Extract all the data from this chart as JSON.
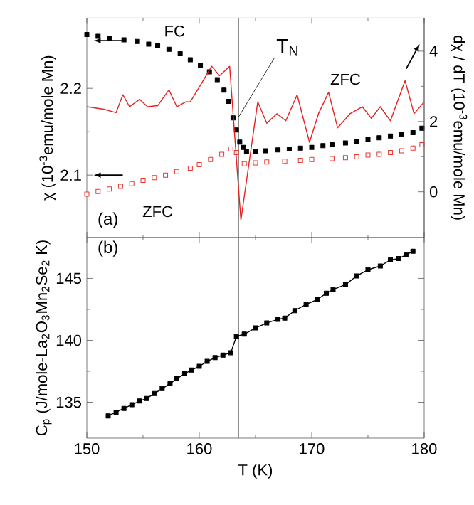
{
  "chart_data": [
    {
      "type": "scatter",
      "ylabel": "χ (10$^{-3}$emu/mole Mn)",
      "y2label": "dχ / dT (10$^{-3}$emu/mole Mn)",
      "xlim": [
        150,
        180
      ],
      "xticks": [
        150,
        160,
        170,
        180
      ],
      "ylim": [
        2.028,
        2.281
      ],
      "yticks": [
        2.1,
        2.2
      ],
      "y2lim": [
        -1.3,
        4.94
      ],
      "y2ticks": [
        0,
        2,
        4
      ],
      "tick_labels": "y",
      "marker": "square",
      "grid": false,
      "series": [
        {
          "name": "FC",
          "color": "#000000",
          "x": [
            150,
            151,
            152,
            153.3,
            154.5,
            155.5,
            156.3,
            157.3,
            158.3,
            159.2,
            160.1,
            160.9,
            161.6,
            162.2,
            162.6,
            163.0,
            163.3,
            163.6,
            163.9,
            164.2,
            165,
            165.9,
            167,
            168,
            169,
            170,
            171,
            171.8,
            173,
            174,
            175,
            176,
            177,
            178,
            179,
            179.8
          ],
          "values": [
            2.262,
            2.26,
            2.258,
            2.256,
            2.254,
            2.251,
            2.249,
            2.245,
            2.24,
            2.233,
            2.226,
            2.219,
            2.21,
            2.198,
            2.185,
            2.166,
            2.152,
            2.138,
            2.132,
            2.127,
            2.127,
            2.128,
            2.129,
            2.13,
            2.131,
            2.132,
            2.134,
            2.135,
            2.137,
            2.139,
            2.141,
            2.143,
            2.145,
            2.147,
            2.149,
            2.154
          ]
        },
        {
          "name": "ZFC",
          "color": "#e8372f",
          "x": [
            150,
            151,
            152,
            153,
            154,
            155,
            156,
            157,
            158,
            159.2,
            160,
            161,
            162,
            162.8,
            163.3,
            164,
            165,
            166,
            167.6,
            169,
            170,
            171.8,
            173,
            174,
            175,
            176,
            177,
            178,
            179,
            179.8
          ],
          "values": [
            2.078,
            2.081,
            2.084,
            2.087,
            2.09,
            2.094,
            2.097,
            2.1,
            2.104,
            2.108,
            2.112,
            2.118,
            2.124,
            2.13,
            2.126,
            2.113,
            2.114,
            2.115,
            2.116,
            2.117,
            2.118,
            2.119,
            2.12,
            2.121,
            2.123,
            2.124,
            2.126,
            2.128,
            2.131,
            2.135
          ]
        },
        {
          "name": "ZFC",
          "color": "#e8201f",
          "type": "line",
          "axis": "y2",
          "marker": "none",
          "x": [
            150,
            151.5,
            152.6,
            153.2,
            153.8,
            154.7,
            155.4,
            156.3,
            157.3,
            158.0,
            158.8,
            159.2,
            160.1,
            161.1,
            161.8,
            162.7,
            163.7,
            165.2,
            166,
            166.9,
            167.7,
            168.7,
            169.8,
            170.6,
            171.5,
            172.3,
            173.4,
            174.5,
            175.3,
            176.1,
            177,
            178.3,
            179.1,
            180
          ],
          "values": [
            2.42,
            2.35,
            2.25,
            2.76,
            2.42,
            2.63,
            2.42,
            2.45,
            2.9,
            2.42,
            2.56,
            2.56,
            3.03,
            3.57,
            3.3,
            3.57,
            -0.81,
            2.56,
            1.95,
            2.22,
            2.02,
            2.76,
            1.41,
            2.22,
            2.83,
            1.82,
            2.22,
            2.42,
            2.09,
            2.42,
            2.02,
            3.16,
            2.22,
            2.56
          ]
        }
      ],
      "ref_lines": [
        {
          "axis": "x",
          "value": 163.5,
          "label": "T$_{N}$",
          "color": "#808080"
        }
      ],
      "annotations": [
        "(a)"
      ]
    },
    {
      "type": "line",
      "xlabel": "T (K)",
      "ylabel": "C$_{p}$ (J/mole-La$_{2}$O$_{3}$Mn$_{2}$Se$_{2}$ K)",
      "xlim": [
        150,
        180
      ],
      "xticks": [
        150,
        160,
        170,
        180
      ],
      "ylim": [
        132.1,
        148.3
      ],
      "yticks": [
        135,
        140,
        145
      ],
      "marker": "square",
      "grid": false,
      "series": [
        {
          "color": "#000000",
          "x": [
            151.9,
            152.6,
            153.3,
            154,
            154.7,
            155.3,
            156,
            156.7,
            157.4,
            158,
            158.7,
            159.3,
            160,
            160.7,
            161.4,
            162.1,
            162.8,
            163.3,
            164,
            165,
            166,
            167,
            167.6,
            168.5,
            169.5,
            170.5,
            171.3,
            171.9,
            173,
            174,
            175,
            176.1,
            177,
            177.7,
            178.4,
            179
          ],
          "values": [
            133.9,
            134.2,
            134.5,
            134.8,
            135.1,
            135.3,
            135.7,
            136.1,
            136.5,
            136.9,
            137.3,
            137.6,
            137.9,
            138.3,
            138.6,
            138.8,
            139.0,
            140.3,
            140.5,
            141,
            141.4,
            141.7,
            141.8,
            142.4,
            142.9,
            143.3,
            143.8,
            144.1,
            144.5,
            145.2,
            145.7,
            146.0,
            146.5,
            146.6,
            146.9,
            147.2
          ]
        }
      ],
      "ref_lines": [
        {
          "axis": "x",
          "value": 163.5,
          "color": "#808080"
        }
      ],
      "annotations": [
        "(b)"
      ]
    }
  ]
}
